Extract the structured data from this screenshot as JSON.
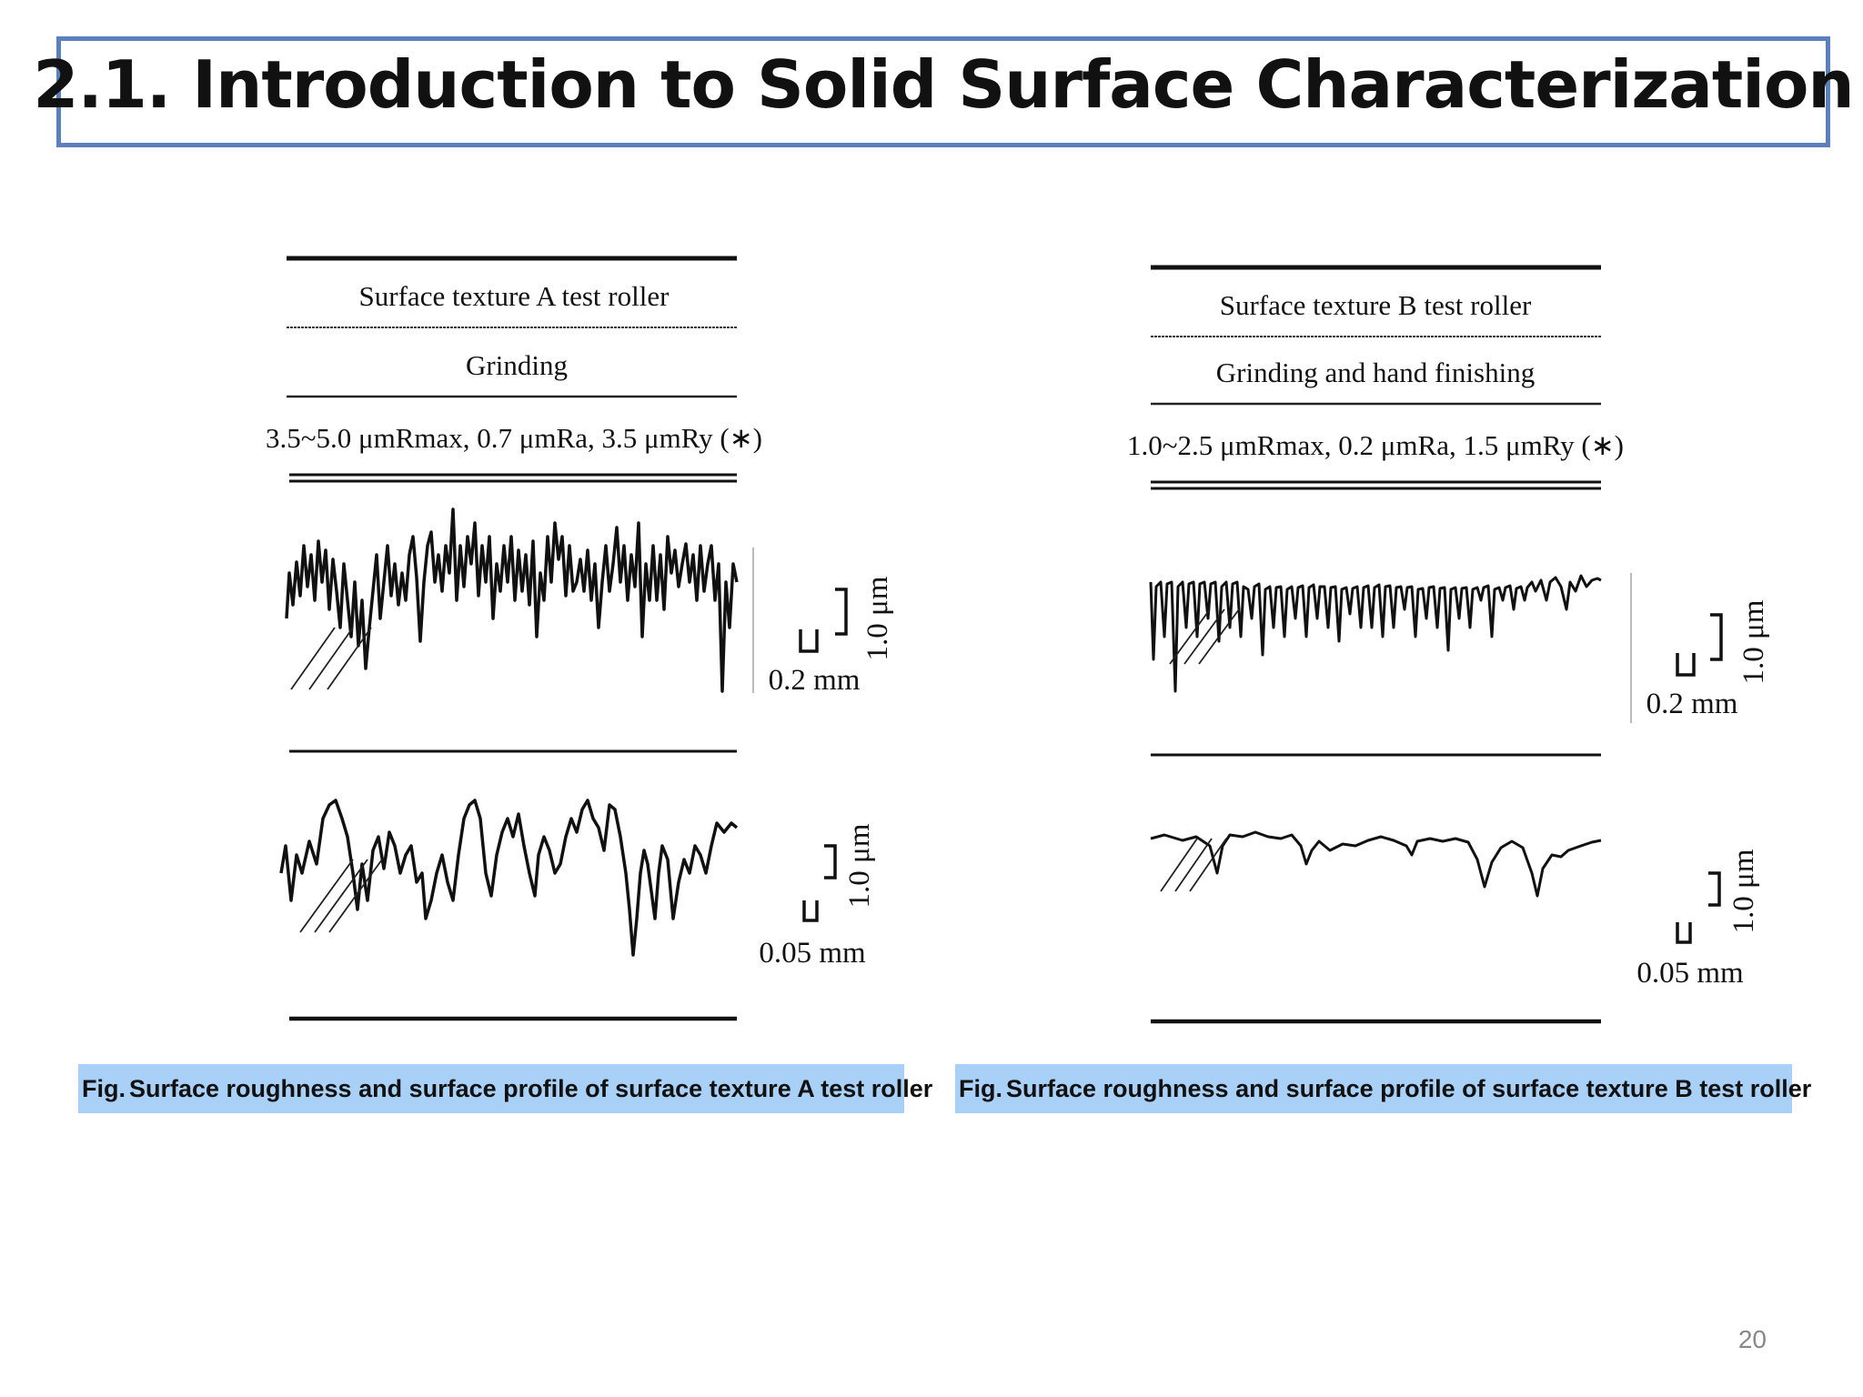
{
  "slide": {
    "title": "2.1. Introduction to Solid Surface Characterization",
    "page_number": "20"
  },
  "figure_a": {
    "heading": "Surface texture A test roller",
    "process": "Grinding",
    "roughness": "3.5~5.0 μmRmax, 0.7 μmRa, 3.5 μmRy (∗)",
    "upper_scale": {
      "horizontal": "0.2 mm",
      "vertical": "1.0 μm"
    },
    "lower_scale": {
      "horizontal": "0.05 mm",
      "vertical": "1.0 μm"
    },
    "caption_label": "Fig.",
    "caption_text": "Surface roughness and surface profile of surface texture A test roller"
  },
  "figure_b": {
    "heading": "Surface texture B test roller",
    "process": "Grinding and hand finishing",
    "roughness": "1.0~2.5 μmRmax, 0.2 μmRa, 1.5 μmRy (∗)",
    "upper_scale": {
      "horizontal": "0.2 mm",
      "vertical": "1.0 μm"
    },
    "lower_scale": {
      "horizontal": "0.05 mm",
      "vertical": "1.0 μm"
    },
    "caption_label": "Fig.",
    "caption_text": "Surface roughness and surface profile of surface texture B test roller"
  }
}
